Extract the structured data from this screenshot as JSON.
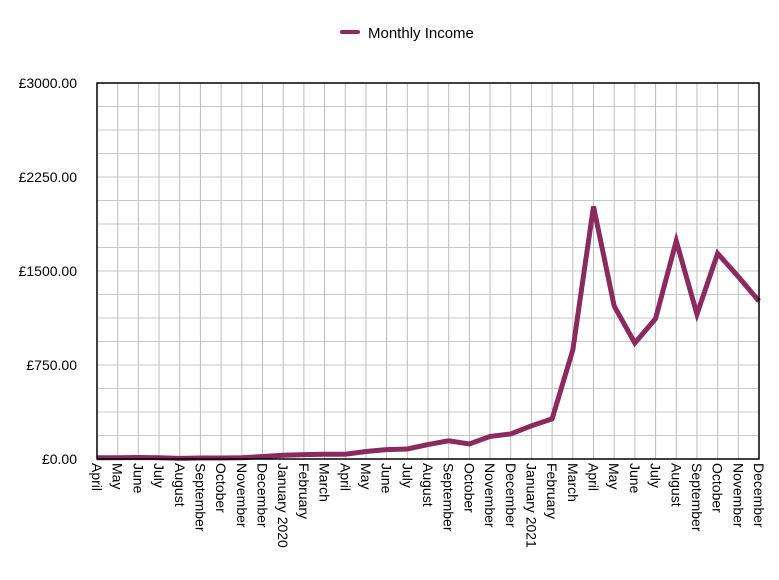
{
  "chart_data": {
    "type": "line",
    "title": "",
    "xlabel": "",
    "ylabel": "",
    "ylim": [
      0,
      3000
    ],
    "yticks": [
      "£0.00",
      "£750.00",
      "£1500.00",
      "£2250.00",
      "£3000.00"
    ],
    "ytick_values": [
      0,
      750,
      1500,
      2250,
      3000
    ],
    "grid": true,
    "legend": "top-center",
    "categories": [
      "April",
      "May",
      "June",
      "July",
      "August",
      "September",
      "October",
      "November",
      "December",
      "January 2020",
      "February",
      "March",
      "April",
      "May",
      "June",
      "July",
      "August",
      "September",
      "October",
      "November",
      "December",
      "January 2021",
      "February",
      "March",
      "April",
      "May",
      "June",
      "July",
      "August",
      "September",
      "October",
      "November",
      "December"
    ],
    "series": [
      {
        "name": "Monthly Income",
        "color": "#8b2a5e",
        "values": [
          10,
          10,
          12,
          10,
          5,
          8,
          8,
          10,
          20,
          30,
          35,
          38,
          38,
          60,
          75,
          80,
          115,
          145,
          120,
          180,
          200,
          265,
          320,
          870,
          2015,
          1220,
          925,
          1120,
          1740,
          1155,
          1640,
          1455,
          1260
        ]
      }
    ]
  }
}
